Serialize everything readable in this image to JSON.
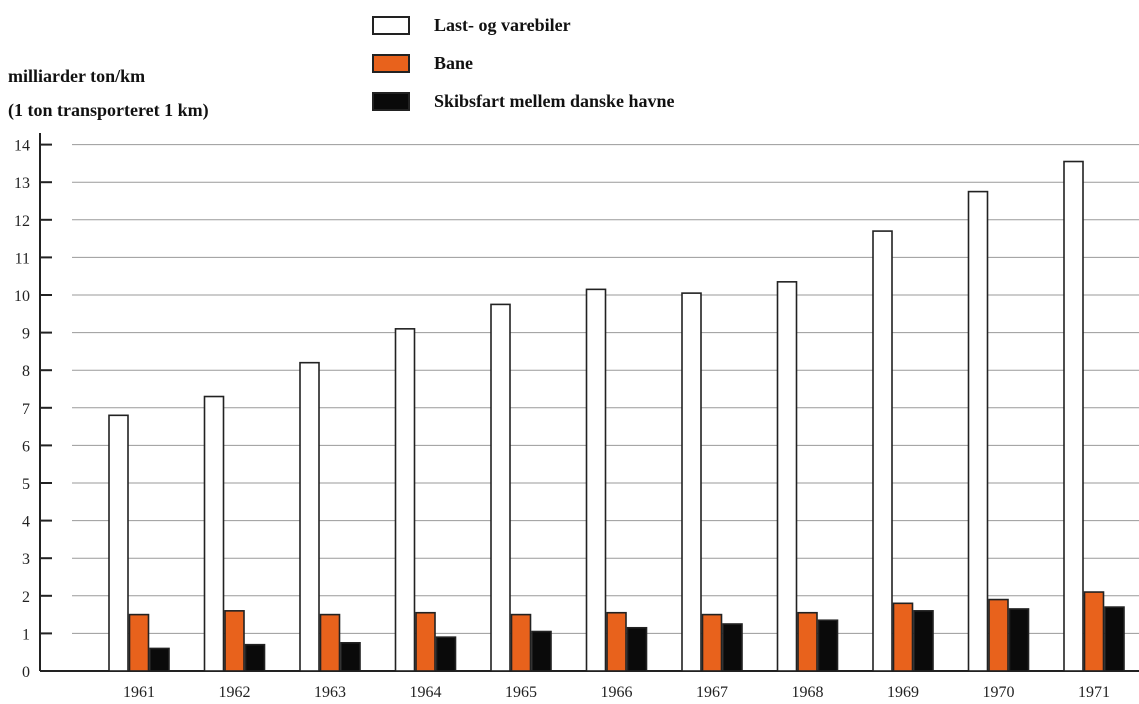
{
  "chart_data": {
    "type": "bar",
    "ylabel": "milliarder ton/km",
    "ylabel_sub": "(1 ton transporteret 1 km)",
    "categories": [
      "1961",
      "1962",
      "1963",
      "1964",
      "1965",
      "1966",
      "1967",
      "1968",
      "1969",
      "1970",
      "1971"
    ],
    "yticks": [
      "0",
      "1",
      "2",
      "3",
      "4",
      "5",
      "6",
      "7",
      "8",
      "9",
      "10",
      "11",
      "12",
      "13",
      "14"
    ],
    "ylim": [
      0,
      14
    ],
    "grid": true,
    "legend_position": "top-center",
    "series": [
      {
        "name": "Last- og varebiler",
        "color": "#ffffff",
        "values": [
          6.8,
          7.3,
          8.2,
          9.1,
          9.75,
          10.15,
          10.05,
          10.35,
          11.7,
          12.75,
          13.55
        ]
      },
      {
        "name": "Bane",
        "color": "#e8621c",
        "values": [
          1.5,
          1.6,
          1.5,
          1.55,
          1.5,
          1.55,
          1.5,
          1.55,
          1.8,
          1.9,
          2.1
        ]
      },
      {
        "name": "Skibsfart mellem danske havne",
        "color": "#0a0a0a",
        "values": [
          0.6,
          0.7,
          0.75,
          0.9,
          1.05,
          1.15,
          1.25,
          1.35,
          1.6,
          1.65,
          1.7
        ]
      }
    ]
  }
}
